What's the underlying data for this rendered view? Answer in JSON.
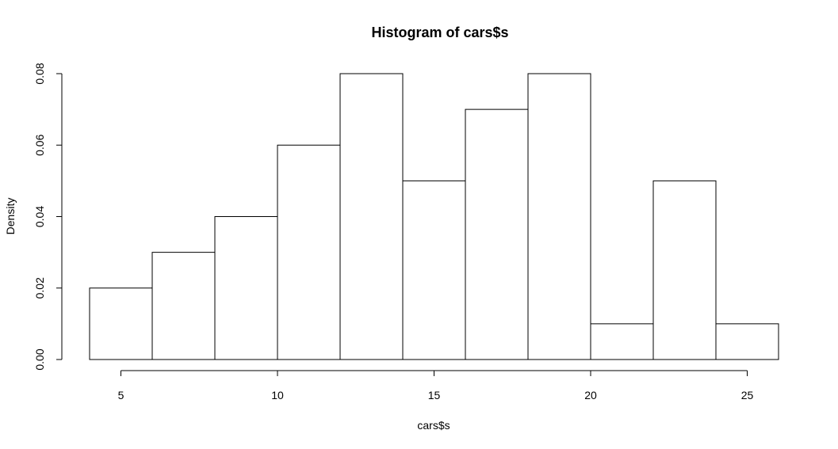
{
  "chart_data": {
    "type": "bar",
    "title": "Histogram of cars$s",
    "xlabel": "cars$s",
    "ylabel": "Density",
    "bins": [
      {
        "start": 4,
        "end": 6,
        "density": 0.02
      },
      {
        "start": 6,
        "end": 8,
        "density": 0.03
      },
      {
        "start": 8,
        "end": 10,
        "density": 0.04
      },
      {
        "start": 10,
        "end": 12,
        "density": 0.06
      },
      {
        "start": 12,
        "end": 14,
        "density": 0.08
      },
      {
        "start": 14,
        "end": 16,
        "density": 0.05
      },
      {
        "start": 16,
        "end": 18,
        "density": 0.07
      },
      {
        "start": 18,
        "end": 20,
        "density": 0.08
      },
      {
        "start": 20,
        "end": 22,
        "density": 0.01
      },
      {
        "start": 22,
        "end": 24,
        "density": 0.05
      },
      {
        "start": 24,
        "end": 26,
        "density": 0.01
      }
    ],
    "x_ticks": [
      5,
      10,
      15,
      20,
      25
    ],
    "x_tick_labels": [
      "5",
      "10",
      "15",
      "20",
      "25"
    ],
    "y_ticks": [
      0,
      0.02,
      0.04,
      0.06,
      0.08
    ],
    "y_tick_labels": [
      "0.00",
      "0.02",
      "0.04",
      "0.06",
      "0.08"
    ],
    "xlim": [
      4,
      26
    ],
    "ylim": [
      0,
      0.08
    ],
    "grid": false,
    "bar_fill": "#ffffff",
    "bar_stroke": "#000000"
  }
}
